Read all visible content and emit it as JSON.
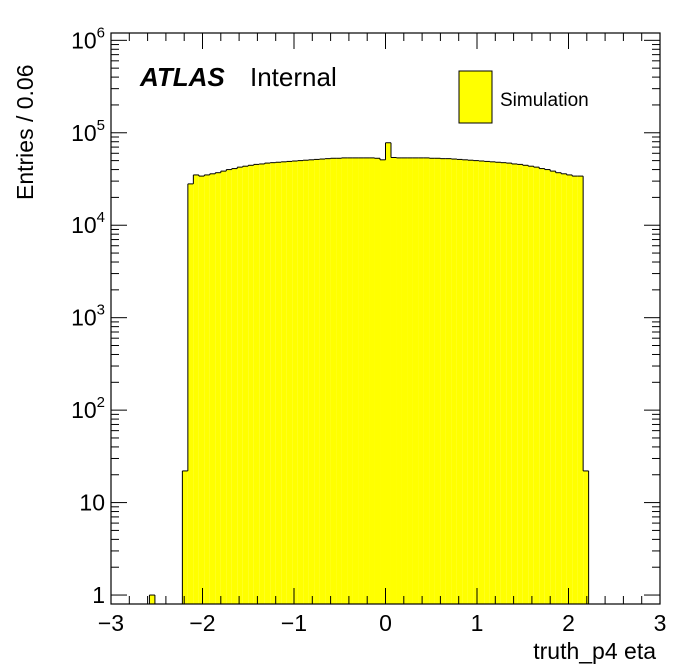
{
  "chart_data": {
    "type": "bar",
    "xlabel": "truth_p4 eta",
    "ylabel": "Entries / 0.06",
    "xlim": [
      -3,
      3
    ],
    "ylim": [
      0.8,
      1200000
    ],
    "yscale": "log",
    "bin_width": 0.06,
    "x_ticks": [
      "−3",
      "−2",
      "−1",
      "0",
      "1",
      "2",
      "3"
    ],
    "x_tick_values": [
      -3,
      -2,
      -1,
      0,
      1,
      2,
      3
    ],
    "y_ticks": [
      {
        "value": 1,
        "base": "1",
        "exp": ""
      },
      {
        "value": 10,
        "base": "10",
        "exp": ""
      },
      {
        "value": 100,
        "base": "10",
        "exp": "2"
      },
      {
        "value": 1000,
        "base": "10",
        "exp": "3"
      },
      {
        "value": 10000,
        "base": "10",
        "exp": "4"
      },
      {
        "value": 100000,
        "base": "10",
        "exp": "5"
      },
      {
        "value": 1000000,
        "base": "10",
        "exp": "6"
      }
    ],
    "grid": false,
    "legend_position": "top-right",
    "fill_color": "#ffff00",
    "line_color": "#000000",
    "series": [
      {
        "name": "Simulation",
        "bins": [
          {
            "x": -2.58,
            "value": 1
          },
          {
            "x": -2.22,
            "value": 22
          },
          {
            "x": -2.16,
            "value": 28000
          },
          {
            "x": -2.1,
            "value": 35000
          },
          {
            "x": -2.04,
            "value": 34000
          },
          {
            "x": -1.98,
            "value": 35000
          },
          {
            "x": -1.92,
            "value": 36000
          },
          {
            "x": -1.86,
            "value": 37000
          },
          {
            "x": -1.8,
            "value": 38500
          },
          {
            "x": -1.74,
            "value": 40000
          },
          {
            "x": -1.68,
            "value": 41000
          },
          {
            "x": -1.62,
            "value": 42500
          },
          {
            "x": -1.56,
            "value": 43500
          },
          {
            "x": -1.5,
            "value": 44500
          },
          {
            "x": -1.44,
            "value": 45500
          },
          {
            "x": -1.38,
            "value": 46000
          },
          {
            "x": -1.32,
            "value": 47000
          },
          {
            "x": -1.26,
            "value": 47500
          },
          {
            "x": -1.2,
            "value": 48000
          },
          {
            "x": -1.14,
            "value": 48500
          },
          {
            "x": -1.08,
            "value": 49000
          },
          {
            "x": -1.02,
            "value": 49500
          },
          {
            "x": -0.96,
            "value": 50000
          },
          {
            "x": -0.9,
            "value": 50500
          },
          {
            "x": -0.84,
            "value": 51000
          },
          {
            "x": -0.78,
            "value": 51500
          },
          {
            "x": -0.72,
            "value": 52000
          },
          {
            "x": -0.66,
            "value": 52500
          },
          {
            "x": -0.6,
            "value": 53000
          },
          {
            "x": -0.54,
            "value": 53000
          },
          {
            "x": -0.48,
            "value": 53500
          },
          {
            "x": -0.42,
            "value": 53500
          },
          {
            "x": -0.36,
            "value": 53500
          },
          {
            "x": -0.3,
            "value": 53500
          },
          {
            "x": -0.24,
            "value": 53500
          },
          {
            "x": -0.18,
            "value": 53500
          },
          {
            "x": -0.12,
            "value": 53000
          },
          {
            "x": -0.06,
            "value": 51000
          },
          {
            "x": 0.0,
            "value": 78000
          },
          {
            "x": 0.06,
            "value": 54000
          },
          {
            "x": 0.12,
            "value": 53500
          },
          {
            "x": 0.18,
            "value": 53500
          },
          {
            "x": 0.24,
            "value": 53500
          },
          {
            "x": 0.3,
            "value": 53500
          },
          {
            "x": 0.36,
            "value": 53500
          },
          {
            "x": 0.42,
            "value": 53500
          },
          {
            "x": 0.48,
            "value": 53000
          },
          {
            "x": 0.54,
            "value": 53000
          },
          {
            "x": 0.6,
            "value": 52500
          },
          {
            "x": 0.66,
            "value": 52500
          },
          {
            "x": 0.72,
            "value": 52000
          },
          {
            "x": 0.78,
            "value": 51500
          },
          {
            "x": 0.84,
            "value": 51000
          },
          {
            "x": 0.9,
            "value": 50500
          },
          {
            "x": 0.96,
            "value": 50000
          },
          {
            "x": 1.02,
            "value": 49500
          },
          {
            "x": 1.08,
            "value": 49000
          },
          {
            "x": 1.14,
            "value": 48500
          },
          {
            "x": 1.2,
            "value": 48000
          },
          {
            "x": 1.26,
            "value": 47500
          },
          {
            "x": 1.32,
            "value": 47000
          },
          {
            "x": 1.38,
            "value": 46000
          },
          {
            "x": 1.44,
            "value": 45500
          },
          {
            "x": 1.5,
            "value": 44500
          },
          {
            "x": 1.56,
            "value": 43500
          },
          {
            "x": 1.62,
            "value": 42500
          },
          {
            "x": 1.68,
            "value": 41000
          },
          {
            "x": 1.74,
            "value": 40000
          },
          {
            "x": 1.8,
            "value": 38500
          },
          {
            "x": 1.86,
            "value": 37000
          },
          {
            "x": 1.92,
            "value": 36000
          },
          {
            "x": 1.98,
            "value": 35000
          },
          {
            "x": 2.04,
            "value": 34000
          },
          {
            "x": 2.1,
            "value": 34000
          },
          {
            "x": 2.16,
            "value": 22
          }
        ]
      }
    ]
  },
  "annotations": {
    "experiment": "ATLAS",
    "status": "Internal"
  }
}
